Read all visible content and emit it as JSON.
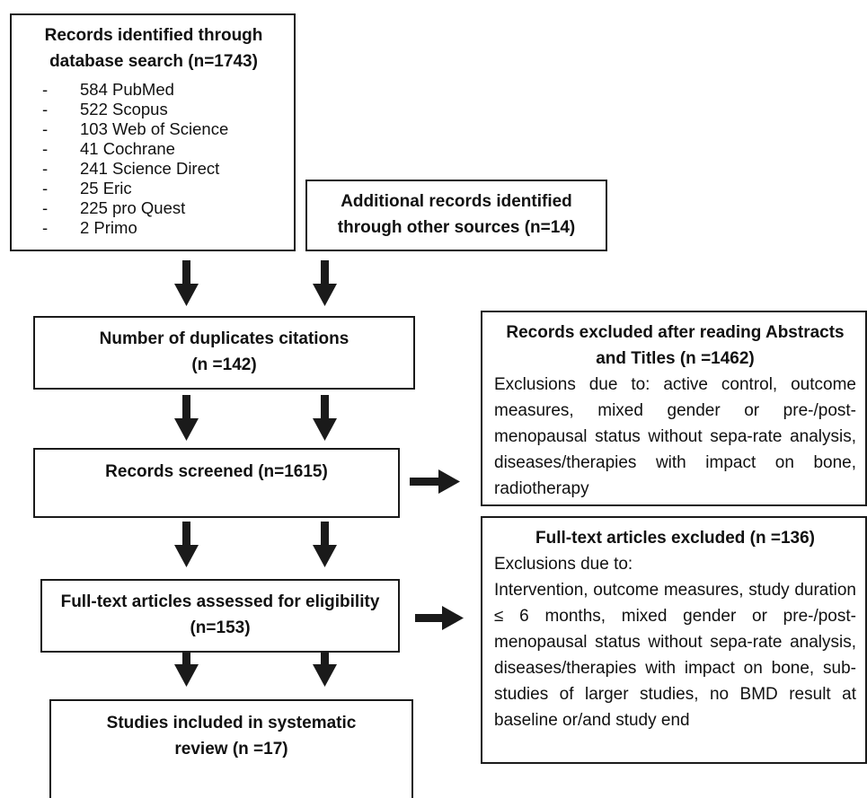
{
  "colors": {
    "stroke": "#1a1a1a",
    "text": "#111111",
    "background": "#ffffff"
  },
  "boxes": {
    "identified": {
      "title": "Records identified through database search (n=1743)",
      "sources": [
        "584 PubMed",
        "522 Scopus",
        "103 Web of Science",
        "41 Cochrane",
        "241 Science Direct",
        "25 Eric",
        "225 pro Quest",
        "2 Primo"
      ],
      "bullet": "-"
    },
    "additional": {
      "title": "Additional records identified through other sources (n=14)"
    },
    "duplicates": {
      "title": "Number of duplicates citations",
      "count": "(n =142)"
    },
    "excluded_abstracts": {
      "title": "Records excluded after reading Abstracts and Titles (n =1462)",
      "text": "Exclusions due to: active control, outcome measures, mixed gender or pre-/post-menopausal status without sepa-rate analysis, diseases/therapies with impact on bone, radiotherapy"
    },
    "screened": {
      "title": "Records screened (n=1615)"
    },
    "fulltext_excluded": {
      "title": "Full-text articles excluded (n =136)",
      "subtitle": "Exclusions due to:",
      "text": "Intervention, outcome measures, study duration ≤ 6 months, mixed gender or pre-/post-menopausal status without sepa-rate analysis, diseases/therapies with impact on bone, sub-studies of larger studies, no BMD result at baseline or/and study end"
    },
    "assessed": {
      "title": "Full-text articles assessed for eligibility (n=153)"
    },
    "included": {
      "title": "Studies included in systematic review (n =17)"
    }
  }
}
